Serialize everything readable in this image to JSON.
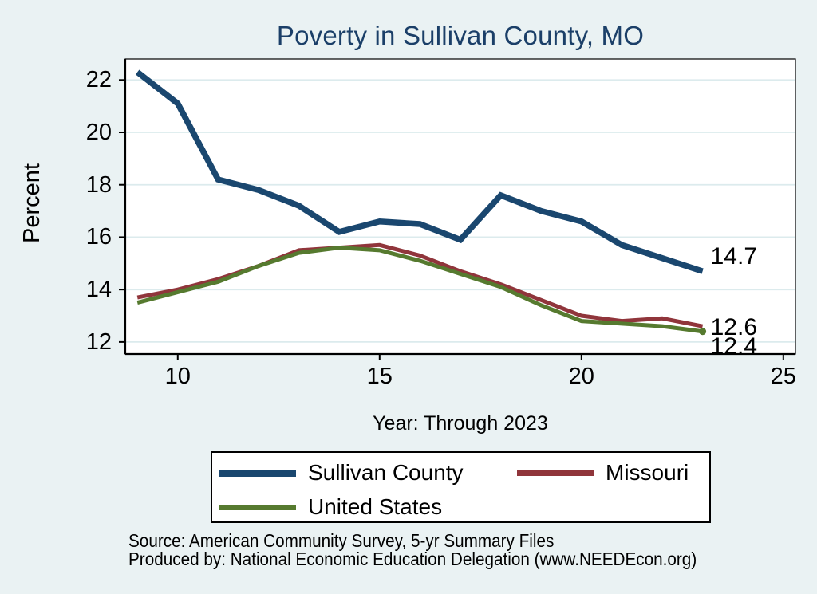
{
  "title": "Poverty in Sullivan County, MO",
  "x_axis": {
    "label": "Year: Through 2023",
    "tick_values": [
      10,
      15,
      20,
      25
    ],
    "tick_labels": [
      "10",
      "15",
      "20",
      "25"
    ],
    "range": [
      8.7,
      25.3
    ]
  },
  "y_axis": {
    "label": "Percent",
    "tick_values": [
      12,
      14,
      16,
      18,
      20,
      22
    ],
    "range": [
      11.54,
      22.8
    ]
  },
  "chart_data": {
    "type": "line",
    "x": [
      9,
      10,
      11,
      12,
      13,
      14,
      15,
      16,
      17,
      18,
      19,
      20,
      21,
      22,
      23
    ],
    "series": [
      {
        "name": "Sullivan County",
        "color": "#1a476f",
        "line_width": 7.5,
        "values": [
          22.3,
          21.1,
          18.2,
          17.8,
          17.2,
          16.2,
          16.6,
          16.5,
          15.9,
          17.6,
          17.0,
          16.6,
          15.7,
          15.2,
          14.7
        ],
        "end_label": "14.7",
        "end_marker": false
      },
      {
        "name": "Missouri",
        "color": "#90353b",
        "line_width": 5,
        "values": [
          13.7,
          14.0,
          14.4,
          14.9,
          15.5,
          15.6,
          15.7,
          15.3,
          14.7,
          14.2,
          13.6,
          13.0,
          12.8,
          12.9,
          12.6
        ],
        "end_label": "12.6",
        "end_marker": false
      },
      {
        "name": "United States",
        "color": "#567a2f",
        "line_width": 5,
        "values": [
          13.5,
          13.9,
          14.3,
          14.9,
          15.4,
          15.6,
          15.5,
          15.1,
          14.6,
          14.1,
          13.4,
          12.8,
          12.7,
          12.6,
          12.4
        ],
        "end_label": "12.4",
        "end_marker": true
      }
    ],
    "grid": "horizontal",
    "legend_position": "bottom"
  },
  "colors": {
    "background": "#eaf2f3",
    "plot_background": "#ffffff",
    "gridline": "#dcebed",
    "axis": "#000000",
    "title": "#1b3f68"
  },
  "footer": {
    "source": "Source: American Community Survey, 5-yr Summary Files",
    "produced_by": "Produced by: National Economic Education Delegation (www.NEEDEcon.org)"
  }
}
